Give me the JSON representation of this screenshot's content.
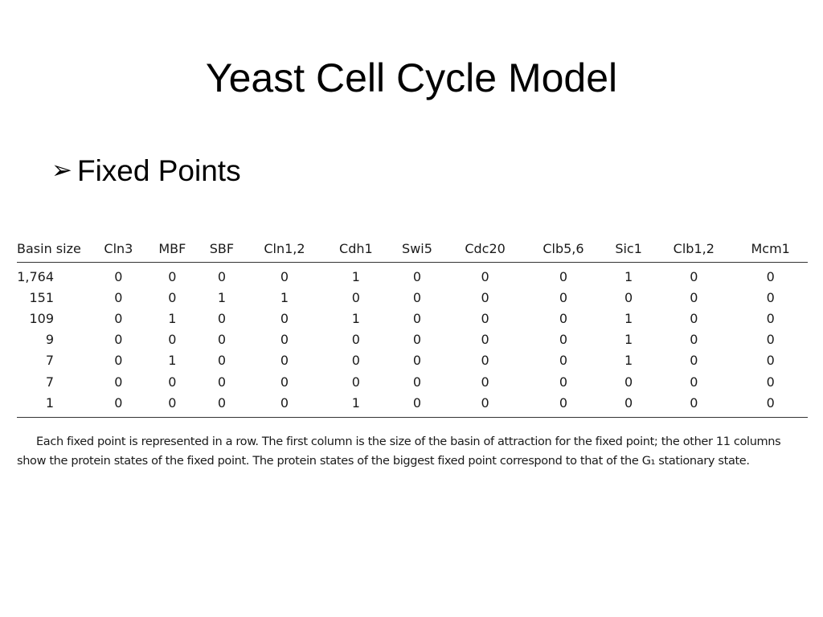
{
  "slide": {
    "title": "Yeast Cell Cycle Model",
    "bullet": {
      "marker": "➢",
      "text": "Fixed Points"
    }
  },
  "table": {
    "headers": [
      "Basin size",
      "Cln3",
      "MBF",
      "SBF",
      "Cln1,2",
      "Cdh1",
      "Swi5",
      "Cdc20",
      "Clb5,6",
      "Sic1",
      "Clb1,2",
      "Mcm1"
    ],
    "rows": [
      [
        "1,764",
        "0",
        "0",
        "0",
        "0",
        "1",
        "0",
        "0",
        "0",
        "1",
        "0",
        "0"
      ],
      [
        "151",
        "0",
        "0",
        "1",
        "1",
        "0",
        "0",
        "0",
        "0",
        "0",
        "0",
        "0"
      ],
      [
        "109",
        "0",
        "1",
        "0",
        "0",
        "1",
        "0",
        "0",
        "0",
        "1",
        "0",
        "0"
      ],
      [
        "9",
        "0",
        "0",
        "0",
        "0",
        "0",
        "0",
        "0",
        "0",
        "1",
        "0",
        "0"
      ],
      [
        "7",
        "0",
        "1",
        "0",
        "0",
        "0",
        "0",
        "0",
        "0",
        "1",
        "0",
        "0"
      ],
      [
        "7",
        "0",
        "0",
        "0",
        "0",
        "0",
        "0",
        "0",
        "0",
        "0",
        "0",
        "0"
      ],
      [
        "1",
        "0",
        "0",
        "0",
        "0",
        "1",
        "0",
        "0",
        "0",
        "0",
        "0",
        "0"
      ]
    ]
  },
  "caption": {
    "line1": "Each fixed point is represented in a row. The first column is the size of the basin of attraction for the fixed point; the other 11 columns",
    "line2": "show the protein states of the fixed point. The protein states of the biggest fixed point correspond to that of the G₁ stationary state."
  }
}
